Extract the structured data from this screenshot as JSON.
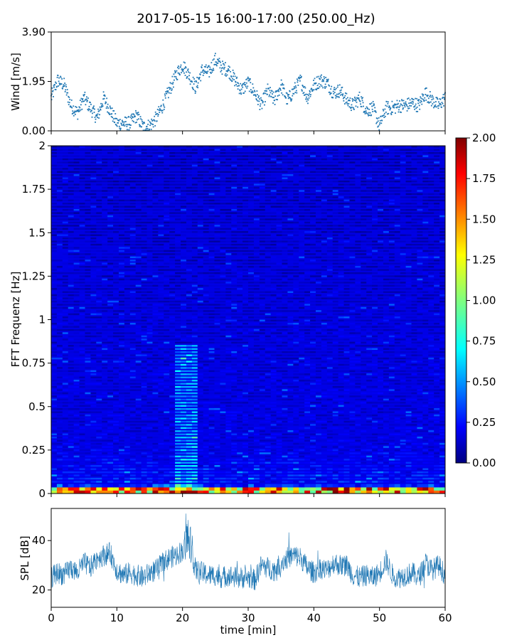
{
  "title": "2017-05-15 16:00-17:00 (250.00_Hz)",
  "colors": {
    "wind": "#1f77b4",
    "spl": "#1f77b4",
    "colormap": "jet"
  },
  "chart_data": [
    {
      "id": "wind",
      "type": "scatter",
      "title": "",
      "xlabel": "",
      "ylabel": "Wind [m/s]",
      "xlim": [
        0,
        60
      ],
      "ylim": [
        0,
        3.9
      ],
      "yticks": [
        "0.00",
        "1.95",
        "3.90"
      ],
      "series": [
        {
          "x": [
            0,
            1,
            2,
            3,
            4,
            5,
            6,
            7,
            8,
            9,
            10,
            11,
            12,
            13,
            14,
            15,
            16,
            17,
            18,
            19,
            20,
            21,
            22,
            23,
            24,
            25,
            26,
            27,
            28,
            29,
            30,
            31,
            32,
            33,
            34,
            35,
            36,
            37,
            38,
            39,
            40,
            41,
            42,
            43,
            44,
            45,
            46,
            47,
            48,
            49,
            50,
            51,
            52,
            53,
            54,
            55,
            56,
            57,
            58,
            59,
            60
          ],
          "y": [
            1.3,
            2.0,
            1.8,
            1.0,
            0.7,
            1.3,
            0.9,
            0.5,
            1.3,
            0.8,
            0.3,
            0.3,
            0.3,
            0.6,
            0.15,
            0.2,
            0.5,
            1.0,
            1.6,
            2.2,
            2.6,
            2.2,
            1.7,
            2.4,
            2.3,
            2.8,
            2.5,
            2.4,
            2.0,
            1.6,
            1.9,
            1.5,
            1.0,
            1.6,
            1.2,
            1.8,
            1.2,
            1.6,
            2.0,
            1.3,
            1.8,
            2.0,
            1.9,
            1.5,
            1.6,
            1.2,
            1.0,
            1.3,
            0.8,
            0.9,
            0.2,
            0.9,
            0.9,
            1.0,
            1.0,
            1.1,
            1.0,
            1.5,
            1.2,
            1.0,
            1.3
          ]
        }
      ]
    },
    {
      "id": "spectrogram",
      "type": "heatmap",
      "title": "",
      "xlabel": "",
      "ylabel": "FFT Frequenz [Hz]",
      "xlim": [
        0,
        60
      ],
      "ylim": [
        0,
        2
      ],
      "yticks": [
        "0",
        "0.25",
        "0.5",
        "0.75",
        "1",
        "1.25",
        "1.5",
        "1.75",
        "2"
      ],
      "colorbar": {
        "range": [
          0,
          2
        ],
        "ticks": [
          "0.00",
          "0.25",
          "0.50",
          "0.75",
          "1.00",
          "1.25",
          "1.50",
          "1.75",
          "2.00"
        ]
      },
      "base_level": 0.2,
      "low_freq_hot": [
        0,
        0.03
      ],
      "bright_episode_min": [
        18.5,
        22
      ]
    },
    {
      "id": "spl",
      "type": "line",
      "title": "",
      "xlabel": "time [min]",
      "ylabel": "SPL [dB]",
      "xlim": [
        0,
        60
      ],
      "ylim": [
        13,
        53
      ],
      "xticks": [
        "0",
        "10",
        "20",
        "30",
        "40",
        "50",
        "60"
      ],
      "yticks": [
        "20",
        "40"
      ],
      "series": [
        {
          "x": [
            0,
            1,
            2,
            3,
            4,
            5,
            6,
            7,
            8,
            9,
            10,
            11,
            12,
            13,
            14,
            15,
            16,
            17,
            18,
            19,
            20,
            21,
            22,
            23,
            24,
            25,
            26,
            27,
            28,
            29,
            30,
            31,
            32,
            33,
            34,
            35,
            36,
            37,
            38,
            39,
            40,
            41,
            42,
            43,
            44,
            45,
            46,
            47,
            48,
            49,
            50,
            51,
            52,
            53,
            54,
            55,
            56,
            57,
            58,
            59,
            60
          ],
          "y": [
            25,
            27,
            26,
            29,
            27,
            31,
            29,
            33,
            34,
            35,
            28,
            26,
            27,
            26,
            25,
            27,
            28,
            31,
            33,
            34,
            36,
            38,
            28,
            27,
            26,
            26,
            25,
            26,
            25,
            25,
            25,
            24,
            30,
            29,
            28,
            31,
            33,
            34,
            33,
            29,
            27,
            29,
            28,
            31,
            30,
            30,
            26,
            25,
            26,
            25,
            27,
            32,
            26,
            25,
            26,
            27,
            25,
            31,
            28,
            30,
            26
          ]
        }
      ]
    }
  ]
}
